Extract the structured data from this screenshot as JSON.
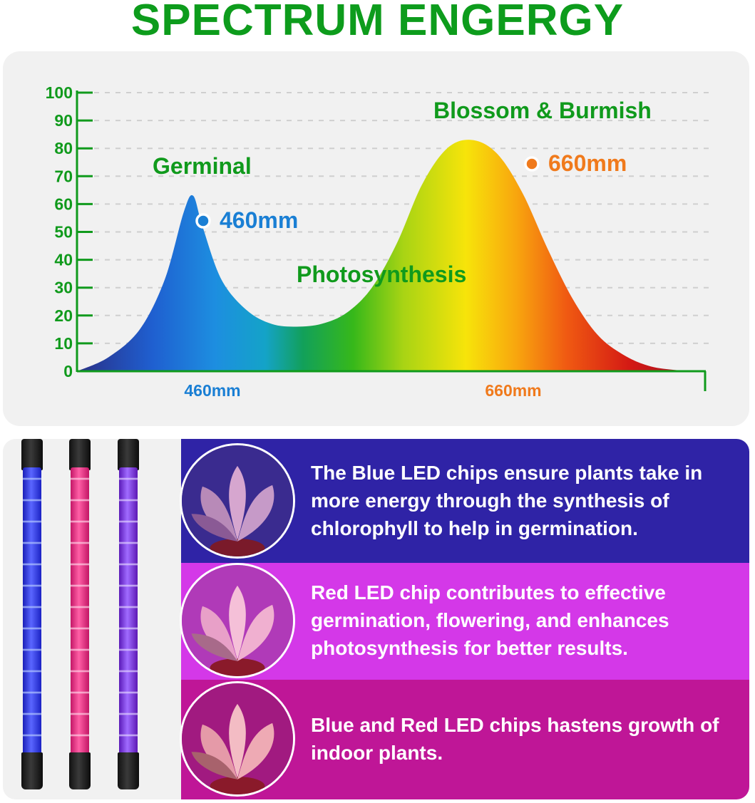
{
  "title": "SPECTRUM ENGERGY",
  "chart_data": {
    "type": "area",
    "x_labels": [
      "460mm",
      "660mm"
    ],
    "y_ticks": [
      0,
      10,
      20,
      30,
      40,
      50,
      60,
      70,
      80,
      90,
      100
    ],
    "ylim": [
      0,
      100
    ],
    "grid": true,
    "series": [
      {
        "x": [
          0.0,
          0.05,
          0.1,
          0.14,
          0.17,
          0.185,
          0.2,
          0.23,
          0.27,
          0.31,
          0.35,
          0.39,
          0.43,
          0.47,
          0.51,
          0.55,
          0.59,
          0.63,
          0.67,
          0.71,
          0.75,
          0.79,
          0.83,
          0.87,
          0.91,
          0.95,
          1.0
        ],
        "y": [
          0,
          5,
          15,
          33,
          57,
          63,
          52,
          33,
          22,
          17,
          16,
          17,
          21,
          30,
          46,
          67,
          80,
          83,
          78,
          64,
          44,
          26,
          13,
          6,
          2,
          0.5,
          0
        ]
      }
    ],
    "annotations": [
      {
        "label": "Germinal",
        "color": "#109a1c"
      },
      {
        "label": "460mm",
        "marker": true,
        "color": "#1a7fd4"
      },
      {
        "label": "Photosynthesis",
        "color": "#109a1c"
      },
      {
        "label": "Blossom & Burmish",
        "color": "#109a1c"
      },
      {
        "label": "660mm",
        "marker": true,
        "color": "#f07a1c"
      }
    ],
    "x_label_colors": [
      "#1a7fd4",
      "#f07a1c"
    ]
  },
  "info": {
    "items": [
      {
        "text": "The Blue LED chips ensure plants take in more energy through the synthesis of chlorophyll to help in germination.",
        "color": "#2f23a6"
      },
      {
        "text": "Red LED chip contributes to effective germination, flowering, and enhances photosynthesis for better results.",
        "color": "#d438e8"
      },
      {
        "text": "Blue and Red LED chips hastens growth of indoor plants.",
        "color": "#bf1697"
      }
    ]
  }
}
